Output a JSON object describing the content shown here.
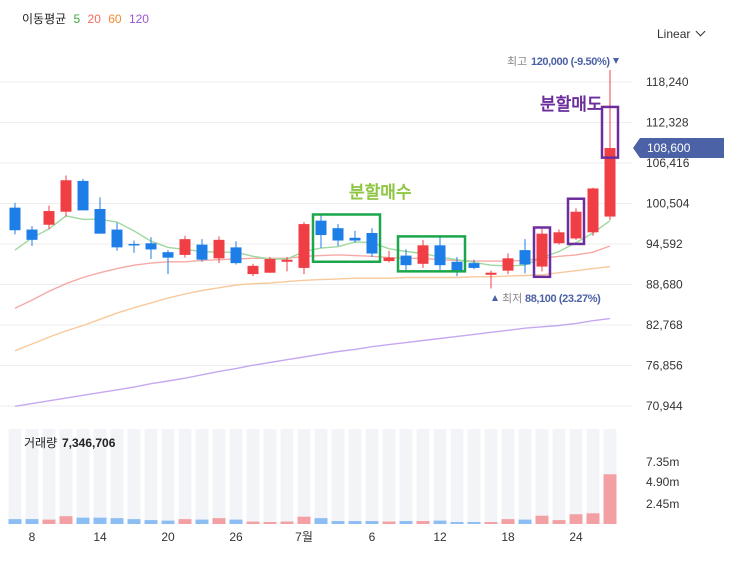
{
  "legend": {
    "label": "이동평균",
    "periods": [
      {
        "value": "5",
        "color": "#3fa93a"
      },
      {
        "value": "20",
        "color": "#f26b5c"
      },
      {
        "value": "60",
        "color": "#f28a2e"
      },
      {
        "value": "120",
        "color": "#9a57d6"
      }
    ]
  },
  "scale_selector": {
    "value": "Linear",
    "icon": "chevron-down-icon"
  },
  "colors": {
    "up": "#ef3f44",
    "down": "#1e7ee8",
    "price_tag": "#4c62a6",
    "buy_box": "#1aa64a",
    "sell_box": "#6c2e9c"
  },
  "chart_data": {
    "type": "candlestick",
    "y_ticks": [
      "118,240",
      "112,328",
      "106,416",
      "100,504",
      "94,592",
      "88,680",
      "82,768",
      "76,856",
      "70,944"
    ],
    "x_ticks": [
      "8",
      "14",
      "20",
      "26",
      "7월",
      "6",
      "12",
      "18",
      "24"
    ],
    "current_price": "108,600",
    "high_label": {
      "prefix": "최고",
      "value": "120,000 (-9.50%)"
    },
    "low_label": {
      "prefix": "최저",
      "value": "88,100 (23.27%)"
    },
    "annotations": {
      "buy": "분할매수",
      "sell": "분할매도"
    },
    "volume": {
      "label": "거래량",
      "value": "7,346,706",
      "ticks": [
        "7.35m",
        "4.90m",
        "2.45m"
      ]
    },
    "candles": [
      {
        "o": 99900,
        "h": 100600,
        "l": 96000,
        "c": 96600
      },
      {
        "o": 96700,
        "h": 97200,
        "l": 94300,
        "c": 95200
      },
      {
        "o": 97400,
        "h": 100200,
        "l": 96800,
        "c": 99400
      },
      {
        "o": 99300,
        "h": 104600,
        "l": 98600,
        "c": 103900
      },
      {
        "o": 103800,
        "h": 104100,
        "l": 99500,
        "c": 99500
      },
      {
        "o": 99700,
        "h": 101400,
        "l": 96100,
        "c": 96100
      },
      {
        "o": 96700,
        "h": 97700,
        "l": 93600,
        "c": 94100
      },
      {
        "o": 94600,
        "h": 95100,
        "l": 93300,
        "c": 94500
      },
      {
        "o": 94700,
        "h": 95600,
        "l": 92400,
        "c": 93800
      },
      {
        "o": 93400,
        "h": 93700,
        "l": 90200,
        "c": 92600
      },
      {
        "o": 93000,
        "h": 95800,
        "l": 92600,
        "c": 95300
      },
      {
        "o": 94500,
        "h": 95300,
        "l": 92000,
        "c": 92300
      },
      {
        "o": 92500,
        "h": 95700,
        "l": 91800,
        "c": 95200
      },
      {
        "o": 94100,
        "h": 95000,
        "l": 91600,
        "c": 91800
      },
      {
        "o": 90200,
        "h": 91700,
        "l": 89900,
        "c": 91400
      },
      {
        "o": 90400,
        "h": 92700,
        "l": 90400,
        "c": 92400
      },
      {
        "o": 92000,
        "h": 92700,
        "l": 90600,
        "c": 92300
      },
      {
        "o": 91100,
        "h": 97800,
        "l": 90200,
        "c": 97500
      },
      {
        "o": 98000,
        "h": 98800,
        "l": 94000,
        "c": 95900
      },
      {
        "o": 96900,
        "h": 97500,
        "l": 94300,
        "c": 95100
      },
      {
        "o": 95500,
        "h": 96500,
        "l": 94800,
        "c": 95100
      },
      {
        "o": 96200,
        "h": 96900,
        "l": 92700,
        "c": 93200
      },
      {
        "o": 92100,
        "h": 93600,
        "l": 91900,
        "c": 92600
      },
      {
        "o": 92900,
        "h": 93800,
        "l": 90800,
        "c": 91500
      },
      {
        "o": 91700,
        "h": 95200,
        "l": 91100,
        "c": 94400
      },
      {
        "o": 94400,
        "h": 95700,
        "l": 90800,
        "c": 91500
      },
      {
        "o": 92000,
        "h": 92700,
        "l": 89900,
        "c": 90600
      },
      {
        "o": 91800,
        "h": 92300,
        "l": 90900,
        "c": 91100
      },
      {
        "o": 90100,
        "h": 90700,
        "l": 88100,
        "c": 90400
      },
      {
        "o": 90700,
        "h": 93200,
        "l": 90200,
        "c": 92500
      },
      {
        "o": 93700,
        "h": 95300,
        "l": 90300,
        "c": 91600
      },
      {
        "o": 91300,
        "h": 96800,
        "l": 90600,
        "c": 96100
      },
      {
        "o": 94700,
        "h": 96700,
        "l": 94500,
        "c": 96300
      },
      {
        "o": 95400,
        "h": 99800,
        "l": 95200,
        "c": 99300
      },
      {
        "o": 96300,
        "h": 102800,
        "l": 95800,
        "c": 102700
      },
      {
        "o": 98600,
        "h": 120000,
        "l": 98100,
        "c": 108600
      }
    ],
    "volumes": [
      0.05,
      0.05,
      0.045,
      0.08,
      0.065,
      0.065,
      0.06,
      0.05,
      0.04,
      0.035,
      0.05,
      0.045,
      0.06,
      0.045,
      0.025,
      0.02,
      0.025,
      0.075,
      0.06,
      0.03,
      0.03,
      0.03,
      0.025,
      0.03,
      0.03,
      0.035,
      0.02,
      0.02,
      0.02,
      0.05,
      0.045,
      0.085,
      0.04,
      0.1,
      0.11,
      0.51
    ],
    "ma5": [
      93700,
      95500,
      96800,
      98700,
      98200,
      98200,
      97800,
      96500,
      95000,
      94100,
      93800,
      93500,
      93400,
      93400,
      92800,
      92400,
      92400,
      93500,
      94000,
      94200,
      94900,
      94800,
      93900,
      93500,
      93200,
      92700,
      92300,
      91900,
      91500,
      91400,
      91500,
      92600,
      93500,
      94800,
      96200,
      98000
    ],
    "ma20": [
      85200,
      86400,
      87700,
      88800,
      89700,
      90400,
      91000,
      91500,
      91800,
      92000,
      92000,
      92200,
      92300,
      92400,
      92500,
      92500,
      92500,
      92800,
      92900,
      93000,
      92900,
      92800,
      92600,
      92500,
      92500,
      92300,
      92200,
      92100,
      92100,
      92100,
      92200,
      92500,
      92800,
      93000,
      93400,
      94300
    ],
    "ma60": [
      79000,
      80000,
      81000,
      81900,
      82700,
      83600,
      84500,
      85300,
      86000,
      86700,
      87300,
      87800,
      88200,
      88600,
      88800,
      88900,
      89100,
      89300,
      89400,
      89500,
      89600,
      89600,
      89600,
      89700,
      89700,
      89700,
      89700,
      89800,
      89800,
      89900,
      90000,
      90100,
      90400,
      90700,
      91000,
      91300
    ],
    "ma120": [
      70900,
      71300,
      71700,
      72100,
      72500,
      72900,
      73300,
      73700,
      74200,
      74600,
      75000,
      75500,
      76000,
      76400,
      76900,
      77300,
      77700,
      78100,
      78500,
      78900,
      79200,
      79600,
      79900,
      80200,
      80500,
      80800,
      81100,
      81400,
      81700,
      82000,
      82300,
      82500,
      82700,
      83000,
      83400,
      83700
    ]
  }
}
